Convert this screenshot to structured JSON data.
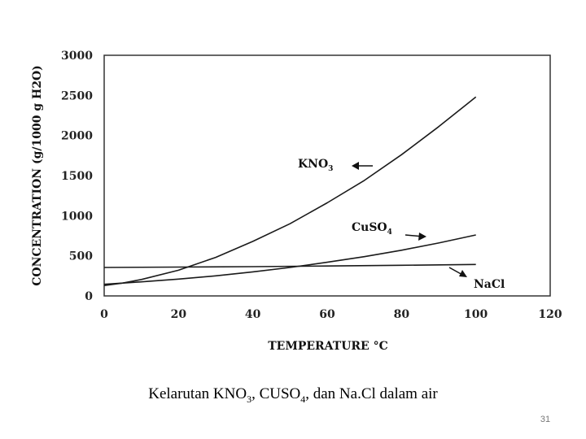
{
  "chart_data": {
    "type": "line",
    "title": "",
    "xlabel": "TEMPERATURE °C",
    "ylabel": "CONCENTRATION (g/1000 g H2O)",
    "xlim": [
      0,
      120
    ],
    "ylim": [
      0,
      3000
    ],
    "x_ticks": [
      0,
      20,
      40,
      60,
      80,
      100,
      120
    ],
    "y_ticks": [
      0,
      500,
      1000,
      1500,
      2000,
      2500,
      3000
    ],
    "grid": false,
    "series": [
      {
        "name": "KNO3",
        "label_main": "KNO",
        "label_sub": "3",
        "x": [
          0,
          5,
          10,
          20,
          30,
          40,
          50,
          60,
          70,
          80,
          90,
          100
        ],
        "y": [
          130,
          160,
          205,
          320,
          480,
          680,
          900,
          1160,
          1440,
          1760,
          2110,
          2480
        ]
      },
      {
        "name": "CuSO4",
        "label_main": "CuSO",
        "label_sub": "4",
        "x": [
          0,
          10,
          20,
          30,
          40,
          50,
          60,
          70,
          80,
          90,
          100
        ],
        "y": [
          145,
          175,
          210,
          250,
          300,
          355,
          420,
          490,
          570,
          660,
          760
        ]
      },
      {
        "name": "NaCl",
        "label_main": "NaCl",
        "label_sub": "",
        "x": [
          0,
          20,
          40,
          60,
          80,
          100
        ],
        "y": [
          355,
          360,
          365,
          373,
          382,
          392
        ]
      }
    ]
  },
  "caption": {
    "part1": "Kelarutan KNO",
    "sub1": "3",
    "part2": ", CUSO",
    "sub2": "4",
    "part3": ", dan Na.Cl dalam air"
  },
  "page_number": "31"
}
